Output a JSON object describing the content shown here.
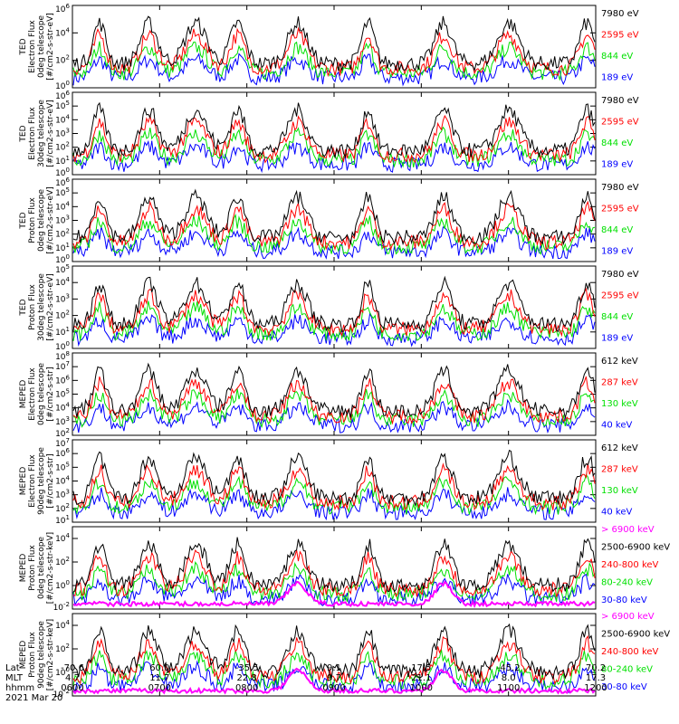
{
  "colors": {
    "black": "#000000",
    "red": "#ff0000",
    "green": "#00e000",
    "blue": "#0000ff",
    "magenta": "#ff00ff"
  },
  "x_axis": {
    "row_titles": [
      "Lat",
      "MLT",
      "hhmm"
    ],
    "lat": [
      "-70.6",
      "60.0",
      "-35.5",
      "9.1",
      "17.5",
      "-45.2",
      "70.2"
    ],
    "mlt": [
      "4.7",
      "11.7",
      "22.8",
      "9.7",
      "21.1",
      "8.0",
      "17.3"
    ],
    "hhmm": [
      "0600",
      "0700",
      "0800",
      "0900",
      "1000",
      "1100",
      "1200"
    ],
    "date": "2021 Mar 20"
  },
  "chart_data": [
    {
      "type": "line",
      "ylabel": [
        "TED",
        "Electron Flux",
        "0deg telescope",
        "[#/cm2-s-str-eV]"
      ],
      "y_scale": "log",
      "ylim_exp": [
        0,
        6
      ],
      "yticks": [
        {
          "m": "10",
          "e": "6"
        },
        {
          "m": "10",
          "e": "4"
        },
        {
          "m": "10",
          "e": "2"
        },
        {
          "m": "10",
          "e": "0"
        }
      ],
      "series": [
        {
          "name": "7980 eV",
          "color": "#000000"
        },
        {
          "name": "2595 eV",
          "color": "#ff0000"
        },
        {
          "name": "844 eV",
          "color": "#00e000"
        },
        {
          "name": "189 eV",
          "color": "#0000ff"
        }
      ]
    },
    {
      "type": "line",
      "ylabel": [
        "TED",
        "Electron Flux",
        "30deg telescope",
        "[#/cm2-s-str-eV]"
      ],
      "y_scale": "log",
      "ylim_exp": [
        0,
        6
      ],
      "yticks": [
        {
          "m": "10",
          "e": "6"
        },
        {
          "m": "10",
          "e": "5"
        },
        {
          "m": "10",
          "e": "4"
        },
        {
          "m": "10",
          "e": "3"
        },
        {
          "m": "10",
          "e": "2"
        },
        {
          "m": "10",
          "e": "1"
        },
        {
          "m": "10",
          "e": "0"
        }
      ],
      "series": [
        {
          "name": "7980 eV",
          "color": "#000000"
        },
        {
          "name": "2595 eV",
          "color": "#ff0000"
        },
        {
          "name": "844 eV",
          "color": "#00e000"
        },
        {
          "name": "189 eV",
          "color": "#0000ff"
        }
      ]
    },
    {
      "type": "line",
      "ylabel": [
        "TED",
        "Proton Flux",
        "0deg telescope",
        "[#/cm2-s-str-eV]"
      ],
      "y_scale": "log",
      "ylim_exp": [
        0,
        6
      ],
      "yticks": [
        {
          "m": "10",
          "e": "6"
        },
        {
          "m": "10",
          "e": "5"
        },
        {
          "m": "10",
          "e": "4"
        },
        {
          "m": "10",
          "e": "3"
        },
        {
          "m": "10",
          "e": "2"
        },
        {
          "m": "10",
          "e": "1"
        },
        {
          "m": "10",
          "e": "0"
        }
      ],
      "series": [
        {
          "name": "7980 eV",
          "color": "#000000"
        },
        {
          "name": "2595 eV",
          "color": "#ff0000"
        },
        {
          "name": "844 eV",
          "color": "#00e000"
        },
        {
          "name": "189 eV",
          "color": "#0000ff"
        }
      ]
    },
    {
      "type": "line",
      "ylabel": [
        "TED",
        "Proton Flux",
        "30deg telescope",
        "[#/cm2-s-str-eV]"
      ],
      "y_scale": "log",
      "ylim_exp": [
        0,
        5
      ],
      "yticks": [
        {
          "m": "10",
          "e": "5"
        },
        {
          "m": "10",
          "e": "4"
        },
        {
          "m": "10",
          "e": "3"
        },
        {
          "m": "10",
          "e": "2"
        },
        {
          "m": "10",
          "e": "1"
        },
        {
          "m": "10",
          "e": "0"
        }
      ],
      "series": [
        {
          "name": "7980 eV",
          "color": "#000000"
        },
        {
          "name": "2595 eV",
          "color": "#ff0000"
        },
        {
          "name": "844 eV",
          "color": "#00e000"
        },
        {
          "name": "189 eV",
          "color": "#0000ff"
        }
      ]
    },
    {
      "type": "line",
      "ylabel": [
        "MEPED",
        "Electron Flux",
        "0deg telescope",
        "[#/cm2-s-str]"
      ],
      "y_scale": "log",
      "ylim_exp": [
        2,
        8
      ],
      "yticks": [
        {
          "m": "10",
          "e": "8"
        },
        {
          "m": "10",
          "e": "7"
        },
        {
          "m": "10",
          "e": "6"
        },
        {
          "m": "10",
          "e": "5"
        },
        {
          "m": "10",
          "e": "4"
        },
        {
          "m": "10",
          "e": "3"
        },
        {
          "m": "10",
          "e": "2"
        }
      ],
      "series": [
        {
          "name": "612 keV",
          "color": "#000000"
        },
        {
          "name": "287 keV",
          "color": "#ff0000"
        },
        {
          "name": "130 keV",
          "color": "#00e000"
        },
        {
          "name": "40 keV",
          "color": "#0000ff"
        }
      ]
    },
    {
      "type": "line",
      "ylabel": [
        "MEPED",
        "Electron Flux",
        "90deg telescope",
        "[#/cm2-s-str]"
      ],
      "y_scale": "log",
      "ylim_exp": [
        1,
        7
      ],
      "yticks": [
        {
          "m": "10",
          "e": "7"
        },
        {
          "m": "10",
          "e": "6"
        },
        {
          "m": "10",
          "e": "5"
        },
        {
          "m": "10",
          "e": "4"
        },
        {
          "m": "10",
          "e": "3"
        },
        {
          "m": "10",
          "e": "2"
        },
        {
          "m": "10",
          "e": "1"
        }
      ],
      "series": [
        {
          "name": "612 keV",
          "color": "#000000"
        },
        {
          "name": "287 keV",
          "color": "#ff0000"
        },
        {
          "name": "130 keV",
          "color": "#00e000"
        },
        {
          "name": "40 keV",
          "color": "#0000ff"
        }
      ]
    },
    {
      "type": "line",
      "ylabel": [
        "MEPED",
        "Proton Flux",
        "0deg telescope",
        "[#/cm2-s-str-keV]"
      ],
      "y_scale": "log",
      "ylim_exp": [
        -2,
        5
      ],
      "yticks": [
        {
          "m": "10",
          "e": "4"
        },
        {
          "m": "10",
          "e": "2"
        },
        {
          "m": "10",
          "e": "0"
        },
        {
          "m": "10",
          "e": "-2"
        }
      ],
      "series": [
        {
          "name": "> 6900 keV",
          "color": "#ff00ff"
        },
        {
          "name": "2500-6900 keV",
          "color": "#000000"
        },
        {
          "name": "240-800 keV",
          "color": "#ff0000"
        },
        {
          "name": "80-240 keV",
          "color": "#00e000"
        },
        {
          "name": "30-80 keV",
          "color": "#0000ff"
        }
      ]
    },
    {
      "type": "line",
      "ylabel": [
        "MEPED",
        "Proton Flux",
        "90deg telescope",
        "[#/cm2-s-str-keV]"
      ],
      "y_scale": "log",
      "ylim_exp": [
        -2,
        5
      ],
      "yticks": [
        {
          "m": "10",
          "e": "4"
        },
        {
          "m": "10",
          "e": "2"
        },
        {
          "m": "10",
          "e": "0"
        },
        {
          "m": "10",
          "e": "-2"
        }
      ],
      "series": [
        {
          "name": "> 6900 keV",
          "color": "#ff00ff"
        },
        {
          "name": "2500-6900 keV",
          "color": "#000000"
        },
        {
          "name": "240-800 keV",
          "color": "#ff0000"
        },
        {
          "name": "80-240 keV",
          "color": "#00e000"
        },
        {
          "name": "30-80 keV",
          "color": "#0000ff"
        }
      ]
    }
  ]
}
